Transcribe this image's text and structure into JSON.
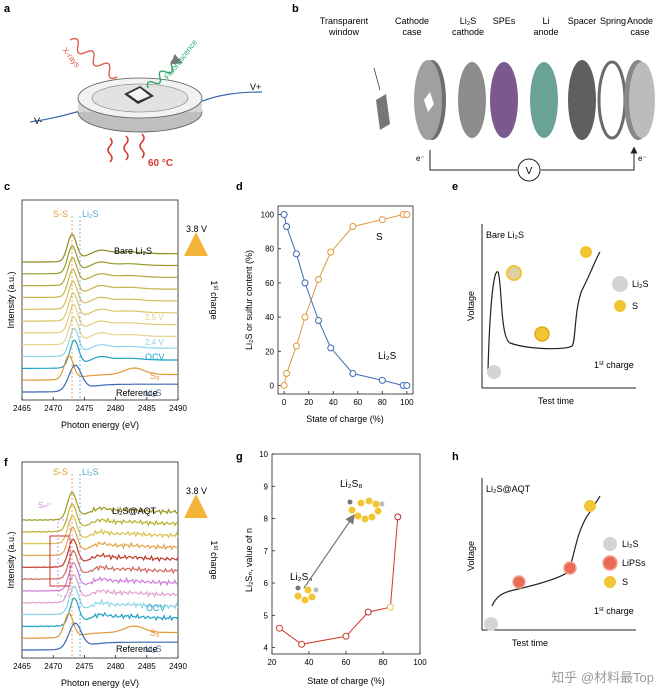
{
  "panel_labels": {
    "a": "a",
    "b": "b",
    "c": "c",
    "d": "d",
    "e": "e",
    "f": "f",
    "g": "g",
    "h": "h"
  },
  "panel_a": {
    "xrays": "X-rays",
    "fluorescence": "Fluorescence",
    "v_minus": "V-",
    "v_plus": "V+",
    "temperature": "60 °C"
  },
  "panel_b": {
    "components": [
      "Transparent window",
      "Cathode case",
      "Li2S cathode",
      "SPEs",
      "Li anode",
      "Spacer",
      "Spring",
      "Anode case"
    ],
    "label_lines": [
      [
        "Transparent",
        "window"
      ],
      [
        "Cathode",
        "case"
      ],
      [
        "Li₂S",
        "cathode"
      ],
      [
        "SPEs"
      ],
      [
        "Li",
        "anode"
      ],
      [
        "Spacer"
      ],
      [
        "Spring"
      ],
      [
        "Anode",
        "case"
      ]
    ],
    "electron_left": "e⁻",
    "electron_right": "e⁻",
    "voltmeter": "V",
    "colors": {
      "spes": "#7a5a8c",
      "li_anode": "#6aa396",
      "case": "#8a8a8a"
    }
  },
  "panel_c": {
    "xlabel": "Photon energy (eV)",
    "ylabel": "Intensity (a.u.)",
    "x_ticks": [
      "2465",
      "2470",
      "2475",
      "2480",
      "2485",
      "2490"
    ],
    "title": "Bare Li₂S",
    "ss_label": "S-S",
    "li2s_label": "Li₂S",
    "voltage_top": "3.8 V",
    "voltage_mid": "2.5 V",
    "voltage_low": "2.4 V",
    "ocv": "OCV",
    "s8": "S₈",
    "li2s_ref": "Li₂S",
    "reference": "Reference",
    "arrow_label_main": "charge",
    "arrow_label_sup": "st",
    "arrow_label_num": "1"
  },
  "panel_d": {
    "chart_data": {
      "type": "line",
      "xlabel": "State of charge (%)",
      "ylabel": "Li₂S or sulfur content  (%)",
      "xlim": [
        -5,
        105
      ],
      "ylim": [
        -5,
        105
      ],
      "x_ticks": [
        0,
        20,
        40,
        60,
        80,
        100
      ],
      "y_ticks": [
        0,
        20,
        40,
        60,
        80,
        100
      ],
      "series": [
        {
          "name": "S",
          "color": "#e0973a",
          "x": [
            0,
            2,
            10,
            17,
            28,
            38,
            56,
            80,
            97,
            100
          ],
          "y": [
            0,
            7,
            23,
            40,
            62,
            78,
            93,
            97,
            100,
            100
          ]
        },
        {
          "name": "Li₂S",
          "color": "#3c68b4",
          "x": [
            0,
            2,
            10,
            17,
            28,
            38,
            56,
            80,
            97,
            100
          ],
          "y": [
            100,
            93,
            77,
            60,
            38,
            22,
            7,
            3,
            0,
            0
          ]
        }
      ]
    }
  },
  "panel_e": {
    "title": "Bare Li₂S",
    "xlabel": "Test time",
    "ylabel": "Voltage",
    "legend_li2s": "Li₂S",
    "legend_s": "S",
    "charge_num": "1",
    "charge_sup": "st",
    "charge_text": " charge",
    "colors": {
      "li2s": "#d4d4d4",
      "s": "#f2c534"
    }
  },
  "panel_f": {
    "xlabel": "Photon energy (eV)",
    "ylabel": "Intensity (a.u.)",
    "x_ticks": [
      "2465",
      "2470",
      "2475",
      "2480",
      "2485",
      "2490"
    ],
    "title": "Li₂S@AQT",
    "ss_label": "S-S",
    "li2s_label": "Li₂S",
    "sn_label": "Sₙ²⁻",
    "voltage_top": "3.8 V",
    "ocv": "OCV",
    "s8": "S₈",
    "li2s_ref": "Li₂S",
    "reference": "Reference",
    "arrow_label_main": "charge",
    "arrow_label_sup": "st",
    "arrow_label_num": "1"
  },
  "panel_g": {
    "chart_data": {
      "type": "line",
      "xlabel": "State of charge (%)",
      "ylabel": "Li₂Sₙ, value of n",
      "xlim": [
        20,
        100
      ],
      "ylim": [
        3.8,
        10
      ],
      "x_ticks": [
        20,
        40,
        60,
        80,
        100
      ],
      "y_ticks": [
        4,
        5,
        6,
        7,
        8,
        9,
        10
      ],
      "series": [
        {
          "name": "n",
          "color": "#d13a2c",
          "x": [
            24,
            36,
            60,
            72,
            84,
            88
          ],
          "y": [
            4.6,
            4.1,
            4.35,
            5.1,
            5.25,
            8.05
          ]
        }
      ],
      "annotations": [
        "Li₂S₄",
        "Li₂S₈"
      ]
    }
  },
  "panel_h": {
    "title": "Li₂S@AQT",
    "xlabel": "Test time",
    "ylabel": "Voltage",
    "legend_li2s": "Li₂S",
    "legend_lipss": "LiPSs",
    "legend_s": "S",
    "charge_num": "1",
    "charge_sup": "st",
    "charge_text": " charge",
    "colors": {
      "li2s": "#d4d4d4",
      "lipss": "#ea6a55",
      "s": "#f2c534"
    }
  },
  "watermark": "知乎 @材料最Top"
}
